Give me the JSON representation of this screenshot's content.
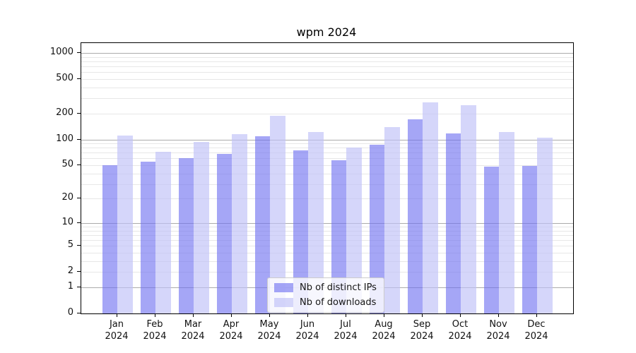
{
  "title": "wpm 2024",
  "legend": {
    "position": "lower center",
    "items": [
      {
        "label": "Nb of distinct IPs",
        "color": "rgba(110,112,240,0.62)"
      },
      {
        "label": "Nb of downloads",
        "color": "rgba(190,192,248,0.65)"
      }
    ]
  },
  "chart_data": {
    "type": "bar",
    "title": "wpm 2024",
    "xlabel": "",
    "ylabel": "",
    "categories": [
      "Jan 2024",
      "Feb 2024",
      "Mar 2024",
      "Apr 2024",
      "May 2024",
      "Jun 2024",
      "Jul 2024",
      "Aug 2024",
      "Sep 2024",
      "Oct 2024",
      "Nov 2024",
      "Dec 2024"
    ],
    "series": [
      {
        "name": "Nb of distinct IPs",
        "color": "rgba(110,112,240,0.62)",
        "values": [
          50,
          55,
          60,
          68,
          110,
          75,
          57,
          87,
          170,
          118,
          48,
          49
        ]
      },
      {
        "name": "Nb of downloads",
        "color": "rgba(190,192,248,0.65)",
        "values": [
          112,
          72,
          94,
          116,
          187,
          123,
          80,
          140,
          270,
          250,
          121,
          105
        ]
      }
    ],
    "yscale": "symlog",
    "ylim": [
      0,
      1300
    ],
    "yticks": [
      0,
      1,
      2,
      5,
      10,
      20,
      50,
      100,
      200,
      500,
      1000
    ],
    "major_gridlines": [
      1,
      10,
      100,
      1000
    ],
    "minor_gridlines": [
      3,
      4,
      6,
      7,
      8,
      9,
      30,
      40,
      60,
      70,
      80,
      90,
      300,
      400,
      600,
      700,
      800,
      900
    ],
    "labeled_minor_gridlines": [
      2,
      5,
      20,
      50,
      200,
      500
    ],
    "grid": true,
    "legend_position": "lower center",
    "colors": {
      "grid_major": "#ababab",
      "grid_minor": "#e7e7e7",
      "axis": "#000000",
      "text": "#111111"
    }
  }
}
